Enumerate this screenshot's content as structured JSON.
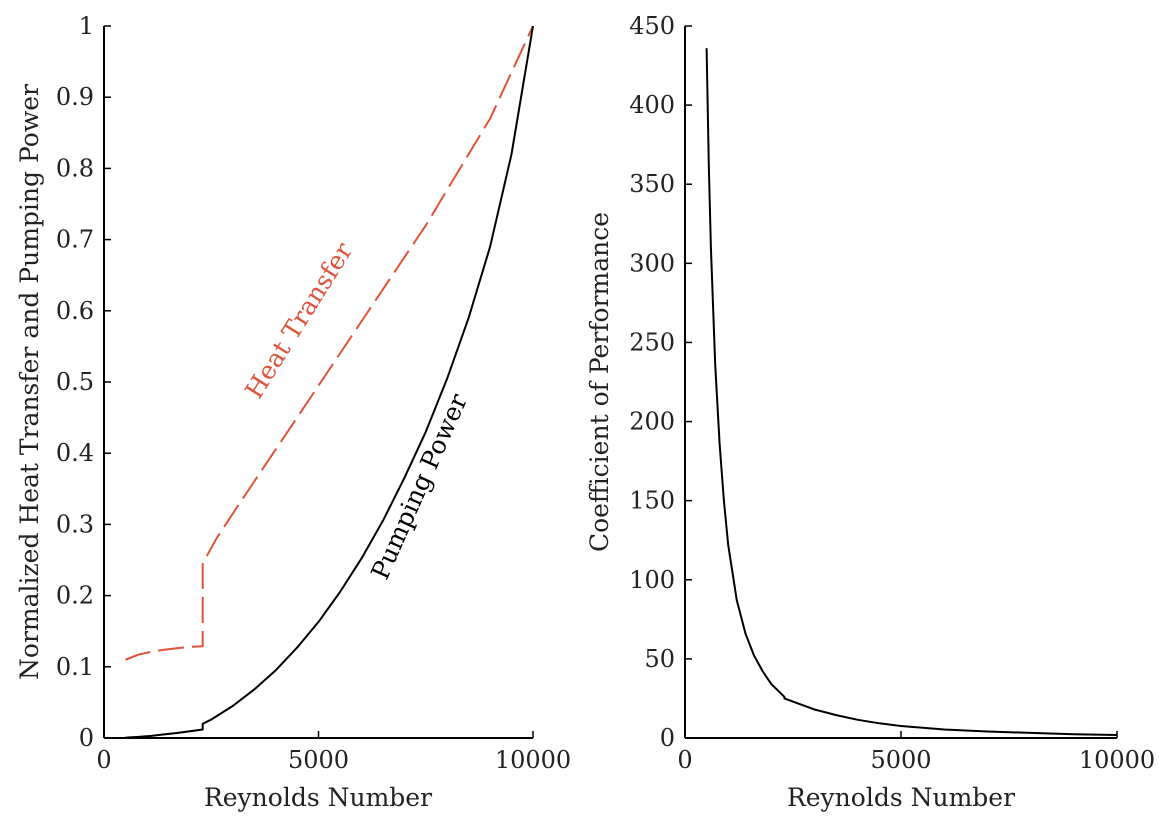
{
  "chart_data": [
    {
      "type": "line",
      "xlabel": "Reynolds Number",
      "ylabel": "Normalized Heat Transfer and Pumping Power",
      "xlim": [
        0,
        10000
      ],
      "ylim": [
        0,
        1
      ],
      "xticks": [
        "0",
        "5000",
        "10000"
      ],
      "yticks": [
        "0",
        "0.1",
        "0.2",
        "0.3",
        "0.4",
        "0.5",
        "0.6",
        "0.7",
        "0.8",
        "0.9",
        "1"
      ],
      "grid": false,
      "series": [
        {
          "name": "Heat Transfer",
          "color": "#e0533a",
          "dash": "dashed",
          "x": [
            500,
            800,
            1100,
            1400,
            1700,
            2000,
            2300,
            2300,
            2600,
            3000,
            3500,
            4000,
            4500,
            5000,
            5500,
            6000,
            6500,
            7000,
            7500,
            8000,
            8500,
            9000,
            9500,
            10000
          ],
          "y": [
            0.11,
            0.117,
            0.121,
            0.124,
            0.126,
            0.128,
            0.129,
            0.245,
            0.278,
            0.315,
            0.36,
            0.405,
            0.45,
            0.495,
            0.54,
            0.585,
            0.63,
            0.675,
            0.72,
            0.77,
            0.82,
            0.87,
            0.935,
            1.0
          ]
        },
        {
          "name": "Pumping Power",
          "color": "#000000",
          "dash": "solid",
          "x": [
            500,
            800,
            1100,
            1400,
            1700,
            2000,
            2300,
            2300,
            2500,
            3000,
            3500,
            4000,
            4500,
            5000,
            5500,
            6000,
            6500,
            7000,
            7500,
            8000,
            8500,
            9000,
            9500,
            10000
          ],
          "y": [
            0.0005,
            0.0015,
            0.003,
            0.005,
            0.007,
            0.0095,
            0.012,
            0.02,
            0.026,
            0.045,
            0.068,
            0.095,
            0.127,
            0.163,
            0.205,
            0.252,
            0.305,
            0.365,
            0.43,
            0.505,
            0.59,
            0.69,
            0.82,
            1.0
          ]
        }
      ],
      "annotations": [
        {
          "text": "Heat Transfer",
          "color": "#e0533a"
        },
        {
          "text": "Pumping Power",
          "color": "#000000"
        }
      ]
    },
    {
      "type": "line",
      "xlabel": "Reynolds Number",
      "ylabel": "Coefficient of Performance",
      "xlim": [
        0,
        10000
      ],
      "ylim": [
        0,
        450
      ],
      "xticks": [
        "0",
        "5000",
        "10000"
      ],
      "yticks": [
        "0",
        "50",
        "100",
        "150",
        "200",
        "250",
        "300",
        "350",
        "400",
        "450"
      ],
      "grid": false,
      "series": [
        {
          "color": "#000000",
          "dash": "solid",
          "x": [
            500,
            550,
            600,
            700,
            800,
            900,
            1000,
            1200,
            1400,
            1600,
            1800,
            2000,
            2300,
            2300,
            2600,
            3000,
            3500,
            4000,
            4500,
            5000,
            6000,
            7000,
            8000,
            9000,
            10000
          ],
          "y": [
            436,
            362,
            310,
            236,
            186,
            150,
            122,
            87,
            66,
            52,
            42,
            34,
            26,
            25,
            22,
            18,
            14.5,
            11.5,
            9.3,
            7.6,
            5.4,
            4.1,
            3.2,
            2.4,
            1.9
          ]
        }
      ]
    }
  ]
}
